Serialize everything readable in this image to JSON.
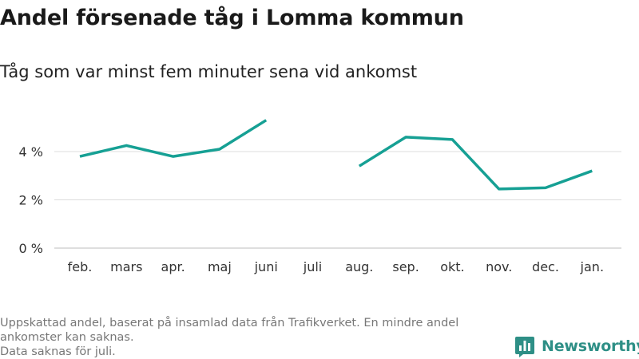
{
  "title": "Andel försenade tåg i Lomma kommun",
  "subtitle": "Tåg som var minst fem minuter sena vid ankomst",
  "footnote": {
    "line1": "Uppskattad andel, baserat på insamlad data från Trafikverket. En mindre andel ankomster kan saknas.",
    "line2": "Data saknas för juli."
  },
  "brand": {
    "name": "Newsworthy",
    "icon": "newsworthy-logo-icon",
    "color": "#2e8f86"
  },
  "chart_data": {
    "type": "line",
    "categories": [
      "feb.",
      "mars",
      "apr.",
      "maj",
      "juni",
      "juli",
      "aug.",
      "sep.",
      "okt.",
      "nov.",
      "dec.",
      "jan."
    ],
    "series": [
      {
        "values": [
          3.8,
          4.25,
          3.8,
          4.1,
          5.3,
          null,
          3.4,
          4.6,
          4.5,
          2.45,
          2.5,
          3.2
        ],
        "color": "#16a094"
      }
    ],
    "yticks": [
      {
        "value": 0,
        "label": "0 %"
      },
      {
        "value": 2,
        "label": "2 %"
      },
      {
        "value": 4,
        "label": "4 %"
      }
    ],
    "ylim": [
      0,
      6
    ],
    "grid": true,
    "legend": "none"
  }
}
